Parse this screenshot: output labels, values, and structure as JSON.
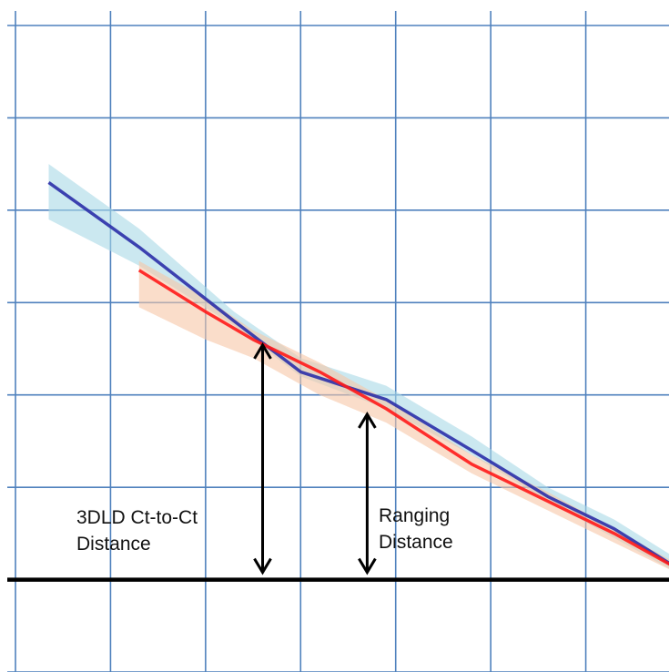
{
  "chart_data": {
    "type": "line",
    "title": "",
    "xlabel": "",
    "ylabel": "",
    "grid": true,
    "xlim": [
      0,
      7
    ],
    "ylim": [
      -1,
      6
    ],
    "grid_color": "#4f81bd",
    "series": [
      {
        "key": "blue",
        "color": "#2b2fa8",
        "band_color": "#a9d8e6",
        "x": [
          0.35,
          1.3,
          2.3,
          3.0,
          3.9,
          4.8,
          5.6,
          6.3,
          7.0
        ],
        "y": [
          4.3,
          3.6,
          2.8,
          2.25,
          1.95,
          1.4,
          0.9,
          0.55,
          0.1
        ],
        "band_upper": [
          4.5,
          3.8,
          2.9,
          2.4,
          2.1,
          1.55,
          1.0,
          0.65,
          0.2
        ],
        "band_lower": [
          3.9,
          3.4,
          2.75,
          2.2,
          1.85,
          1.35,
          0.85,
          0.45,
          0.05
        ]
      },
      {
        "key": "red",
        "color": "#ff1a1a",
        "band_color": "#f6c6a7",
        "x": [
          1.3,
          2.0,
          2.5,
          3.2,
          3.9,
          4.8,
          5.6,
          6.3,
          7.0
        ],
        "y": [
          3.35,
          2.9,
          2.6,
          2.25,
          1.85,
          1.25,
          0.85,
          0.5,
          0.1
        ],
        "band_upper": [
          3.45,
          3.05,
          2.7,
          2.35,
          1.95,
          1.35,
          0.95,
          0.55,
          0.15
        ],
        "band_lower": [
          2.95,
          2.6,
          2.4,
          2.0,
          1.7,
          1.15,
          0.75,
          0.4,
          0.05
        ]
      }
    ],
    "baseline": {
      "y": 0,
      "color": "#000000"
    },
    "arrows": [
      {
        "key": "center",
        "x": 2.6,
        "y_from": 0,
        "y_to": 2.6
      },
      {
        "key": "ranging",
        "x": 3.7,
        "y_from": 0,
        "y_to": 1.85
      }
    ],
    "annotations": [
      {
        "key": "center",
        "lines": [
          "3DLD Ct-to-Ct",
          "Distance"
        ]
      },
      {
        "key": "ranging",
        "lines": [
          "Ranging",
          "Distance"
        ]
      }
    ]
  }
}
